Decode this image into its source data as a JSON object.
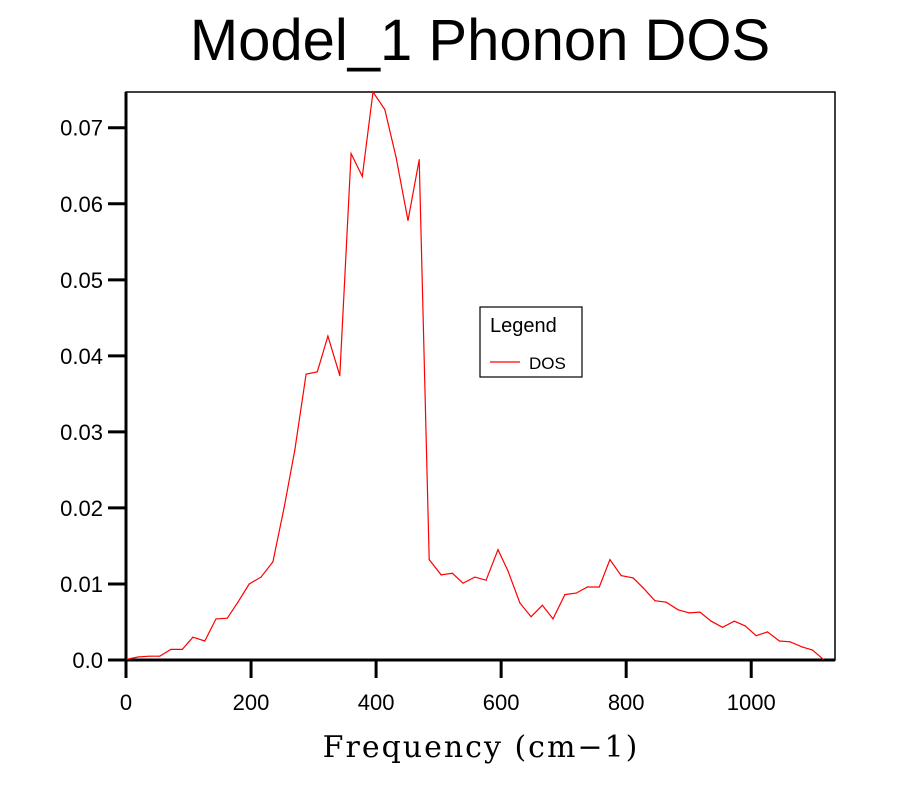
{
  "chart_data": {
    "type": "line",
    "title": "Model_1 Phonon DOS",
    "xlabel": "Frequency (cm−1)",
    "ylabel": "",
    "xlim": [
      0,
      1134
    ],
    "ylim": [
      0,
      0.0747
    ],
    "xticks": [
      0,
      200,
      400,
      600,
      800,
      1000
    ],
    "xtick_labels": [
      "0",
      "200",
      "400",
      "600",
      "800",
      "1000"
    ],
    "yticks": [
      0,
      0.01,
      0.02,
      0.03,
      0.04,
      0.05,
      0.06,
      0.07
    ],
    "ytick_labels": [
      "0.0",
      "0.01",
      "0.02",
      "0.03",
      "0.04",
      "0.05",
      "0.06",
      "0.07"
    ],
    "grid": false,
    "legend": {
      "title": "Legend",
      "placement": "center-right",
      "entries": [
        "DOS"
      ]
    },
    "series": [
      {
        "name": "DOS",
        "color": "#ff0000",
        "x": [
          2,
          19,
          37,
          54,
          72,
          90,
          107,
          126,
          144,
          162,
          179,
          197,
          216,
          235,
          253,
          270,
          288,
          306,
          323,
          342,
          360,
          378,
          395,
          414,
          432,
          451,
          469,
          485,
          504,
          522,
          539,
          558,
          576,
          595,
          611,
          630,
          648,
          666,
          683,
          702,
          720,
          738,
          757,
          774,
          792,
          811,
          827,
          846,
          864,
          883,
          901,
          918,
          936,
          954,
          973,
          990,
          1008,
          1026,
          1045,
          1062,
          1082,
          1098,
          1115
        ],
        "y": [
          0.0001,
          0.0004,
          0.0005,
          0.0005,
          0.0014,
          0.0014,
          0.003,
          0.0025,
          0.0054,
          0.0055,
          0.0076,
          0.01,
          0.0109,
          0.0129,
          0.0201,
          0.0276,
          0.0376,
          0.0379,
          0.0426,
          0.0374,
          0.0666,
          0.0636,
          0.0747,
          0.0724,
          0.0661,
          0.0578,
          0.0658,
          0.0132,
          0.0112,
          0.0114,
          0.0101,
          0.0109,
          0.0105,
          0.0145,
          0.0117,
          0.0075,
          0.0057,
          0.0072,
          0.0054,
          0.0086,
          0.0088,
          0.0096,
          0.0096,
          0.0132,
          0.0111,
          0.0108,
          0.0095,
          0.0078,
          0.0076,
          0.0066,
          0.0062,
          0.0063,
          0.0051,
          0.0043,
          0.0051,
          0.0045,
          0.0032,
          0.0037,
          0.0025,
          0.0024,
          0.0017,
          0.0013,
          0.0001
        ]
      }
    ]
  }
}
